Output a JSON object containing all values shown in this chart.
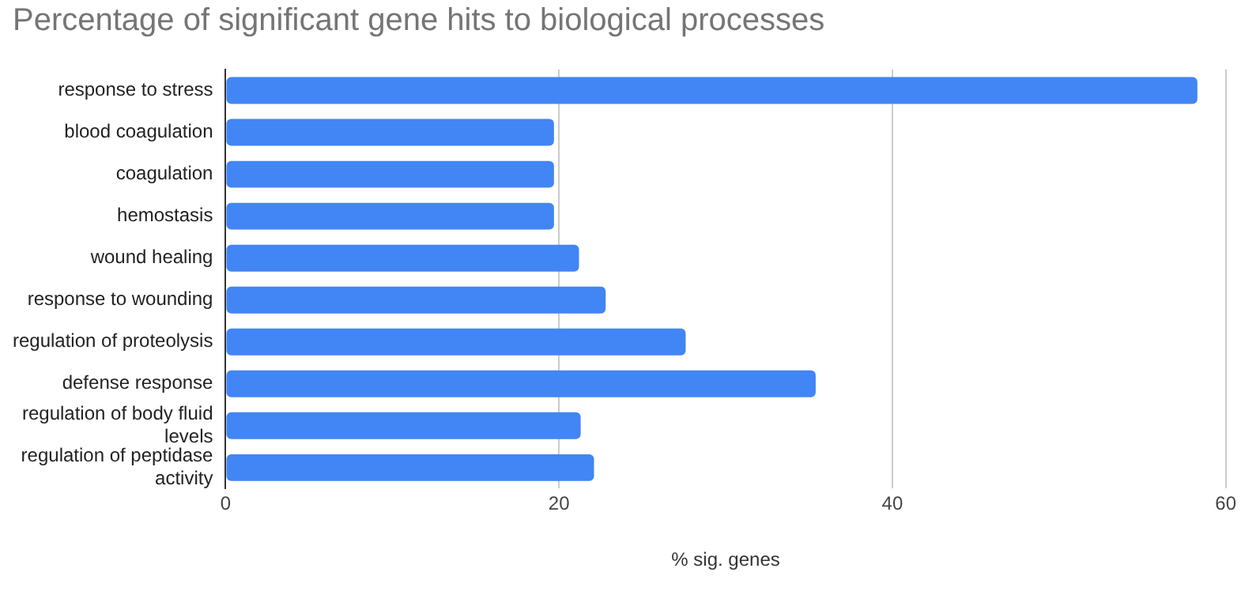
{
  "chart_data": {
    "type": "bar",
    "orientation": "horizontal",
    "title": "Percentage of significant gene hits to biological processes",
    "xlabel": "% sig. genes",
    "categories": [
      "response to stress",
      "blood coagulation",
      "coagulation",
      "hemostasis",
      "wound healing",
      "response to wounding",
      "regulation of proteolysis",
      "defense response",
      "regulation of body fluid levels",
      "regulation of peptidase activity"
    ],
    "values": [
      58.3,
      19.7,
      19.7,
      19.7,
      21.2,
      22.8,
      27.6,
      35.4,
      21.3,
      22.1
    ],
    "color": "#4285f4",
    "xlim": [
      0,
      60
    ],
    "xticks": [
      0,
      20,
      40,
      60
    ],
    "grid": "x",
    "legend": false
  }
}
